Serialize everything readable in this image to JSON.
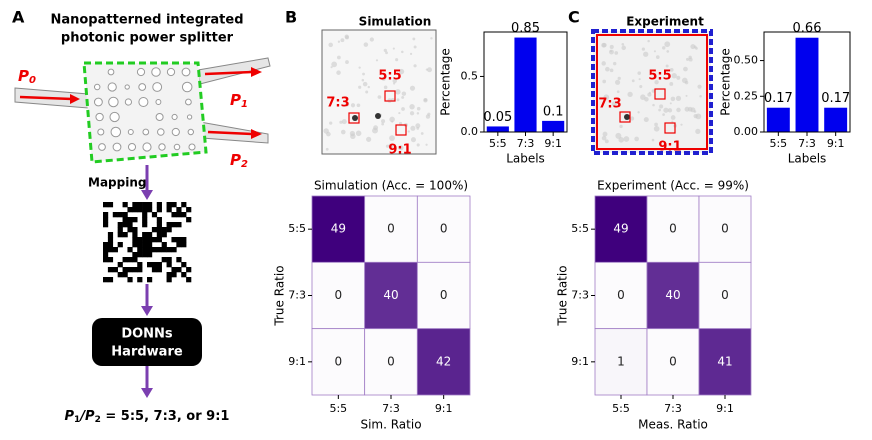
{
  "panel_labels": [
    "A",
    "B",
    "C"
  ],
  "diagram": {
    "title_lines": [
      "Nanopatterned integrated",
      "photonic power splitter"
    ],
    "ports": [
      {
        "letter": "P",
        "sub": "0"
      },
      {
        "letter": "P",
        "sub": "1"
      },
      {
        "letter": "P",
        "sub": "2"
      }
    ],
    "mapping": "Mapping",
    "hardware_lines": [
      "DONNs",
      "Hardware"
    ],
    "equation": [
      "P",
      "1",
      "/P",
      "2",
      " = 5:5, 7:3, or 9:1"
    ]
  },
  "images": [
    {
      "title": "Simulation",
      "labels": [
        "5:5",
        "7:3",
        "9:1"
      ]
    },
    {
      "title": "Experiment",
      "labels": [
        "5:5",
        "7:3",
        "9:1"
      ]
    }
  ],
  "chart_data": [
    {
      "type": "bar",
      "categories": [
        "5:5",
        "7:3",
        "9:1"
      ],
      "values": [
        0.05,
        0.85,
        0.1
      ],
      "color": "#0000ee",
      "ylim": [
        0,
        0.9
      ],
      "yticks": [
        {
          "value": 0,
          "label": "0.0"
        },
        {
          "value": 0.5,
          "label": "0.5"
        }
      ],
      "ylabel": "Percentage",
      "xlabel": "Labels"
    },
    {
      "type": "bar",
      "categories": [
        "5:5",
        "7:3",
        "9:1"
      ],
      "values": [
        0.17,
        0.66,
        0.17
      ],
      "color": "#0000ee",
      "ylim": [
        0,
        0.7
      ],
      "yticks": [
        {
          "value": 0,
          "label": "0.00"
        },
        {
          "value": 0.25,
          "label": "0.25"
        },
        {
          "value": 0.5,
          "label": "0.50"
        }
      ],
      "ylabel": "Percentage",
      "xlabel": "Labels"
    },
    {
      "type": "heatmap",
      "title": "Simulation (Acc. = 100%)",
      "x_categories": [
        "5:5",
        "7:3",
        "9:1"
      ],
      "y_categories": [
        "5:5",
        "7:3",
        "9:1"
      ],
      "values": [
        [
          49,
          0,
          0
        ],
        [
          0,
          40,
          0
        ],
        [
          0,
          0,
          42
        ]
      ],
      "colormap": [
        "#fcfbfd",
        "#3f007d"
      ],
      "vlim": [
        0,
        49
      ],
      "xlabel": "Sim. Ratio",
      "ylabel": "True Ratio"
    },
    {
      "type": "heatmap",
      "title": "Experiment (Acc. = 99%)",
      "x_categories": [
        "5:5",
        "7:3",
        "9:1"
      ],
      "y_categories": [
        "5:5",
        "7:3",
        "9:1"
      ],
      "values": [
        [
          49,
          0,
          0
        ],
        [
          0,
          40,
          0
        ],
        [
          1,
          0,
          41
        ]
      ],
      "colormap": [
        "#fcfbfd",
        "#3f007d"
      ],
      "vlim": [
        0,
        49
      ],
      "xlabel": "Meas. Ratio",
      "ylabel": "True Ratio"
    }
  ]
}
